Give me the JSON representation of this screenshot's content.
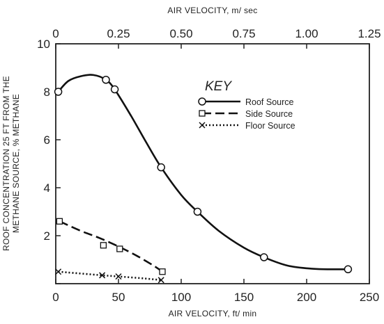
{
  "chart_data": {
    "type": "line",
    "xlabel": "AIR VELOCITY, ft/ min",
    "x2label": "AIR VELOCITY, m/ sec",
    "ylabel_line1": "ROOF CONCENTRATION 25 FT FROM THE",
    "ylabel_line2": "METHANE SOURCE, % METHANE",
    "xlim": [
      0,
      250
    ],
    "ylim": [
      0,
      10
    ],
    "x2lim": [
      0,
      1.25
    ],
    "x_ticks": [
      "0",
      "50",
      "100",
      "150",
      "200",
      "250"
    ],
    "y_ticks": [
      "0",
      "2",
      "4",
      "6",
      "8",
      "10"
    ],
    "x2_ticks": [
      "0",
      "0.25",
      "0.50",
      "0.75",
      "1.00",
      "1.25"
    ],
    "legend_title": "KEY",
    "legend_position": "upper-right",
    "series": [
      {
        "name": "Roof Source",
        "marker": "circle",
        "line_style": "solid",
        "points": [
          [
            2,
            8.0
          ],
          [
            40,
            8.5
          ],
          [
            47,
            8.1
          ],
          [
            84,
            4.85
          ],
          [
            113,
            3.0
          ],
          [
            166,
            1.1
          ],
          [
            233,
            0.6
          ]
        ],
        "curve": [
          [
            2,
            8.0
          ],
          [
            10,
            8.45
          ],
          [
            20,
            8.65
          ],
          [
            30,
            8.7
          ],
          [
            40,
            8.5
          ],
          [
            47,
            8.1
          ],
          [
            60,
            7.0
          ],
          [
            72,
            5.9
          ],
          [
            84,
            4.85
          ],
          [
            100,
            3.7
          ],
          [
            113,
            3.0
          ],
          [
            130,
            2.2
          ],
          [
            150,
            1.5
          ],
          [
            166,
            1.1
          ],
          [
            185,
            0.75
          ],
          [
            205,
            0.62
          ],
          [
            220,
            0.6
          ],
          [
            233,
            0.6
          ]
        ]
      },
      {
        "name": "Side Source",
        "marker": "square",
        "line_style": "dashed",
        "points": [
          [
            3,
            2.6
          ],
          [
            38,
            1.6
          ],
          [
            51,
            1.45
          ],
          [
            85,
            0.5
          ]
        ],
        "curve": [
          [
            3,
            2.6
          ],
          [
            20,
            2.2
          ],
          [
            35,
            1.9
          ],
          [
            50,
            1.55
          ],
          [
            65,
            1.15
          ],
          [
            78,
            0.75
          ],
          [
            85,
            0.5
          ]
        ]
      },
      {
        "name": "Floor Source",
        "marker": "x",
        "line_style": "dotted",
        "points": [
          [
            2,
            0.5
          ],
          [
            37,
            0.35
          ],
          [
            50,
            0.3
          ],
          [
            84,
            0.15
          ]
        ],
        "curve": [
          [
            2,
            0.5
          ],
          [
            37,
            0.35
          ],
          [
            50,
            0.3
          ],
          [
            70,
            0.22
          ],
          [
            84,
            0.15
          ]
        ]
      }
    ]
  }
}
